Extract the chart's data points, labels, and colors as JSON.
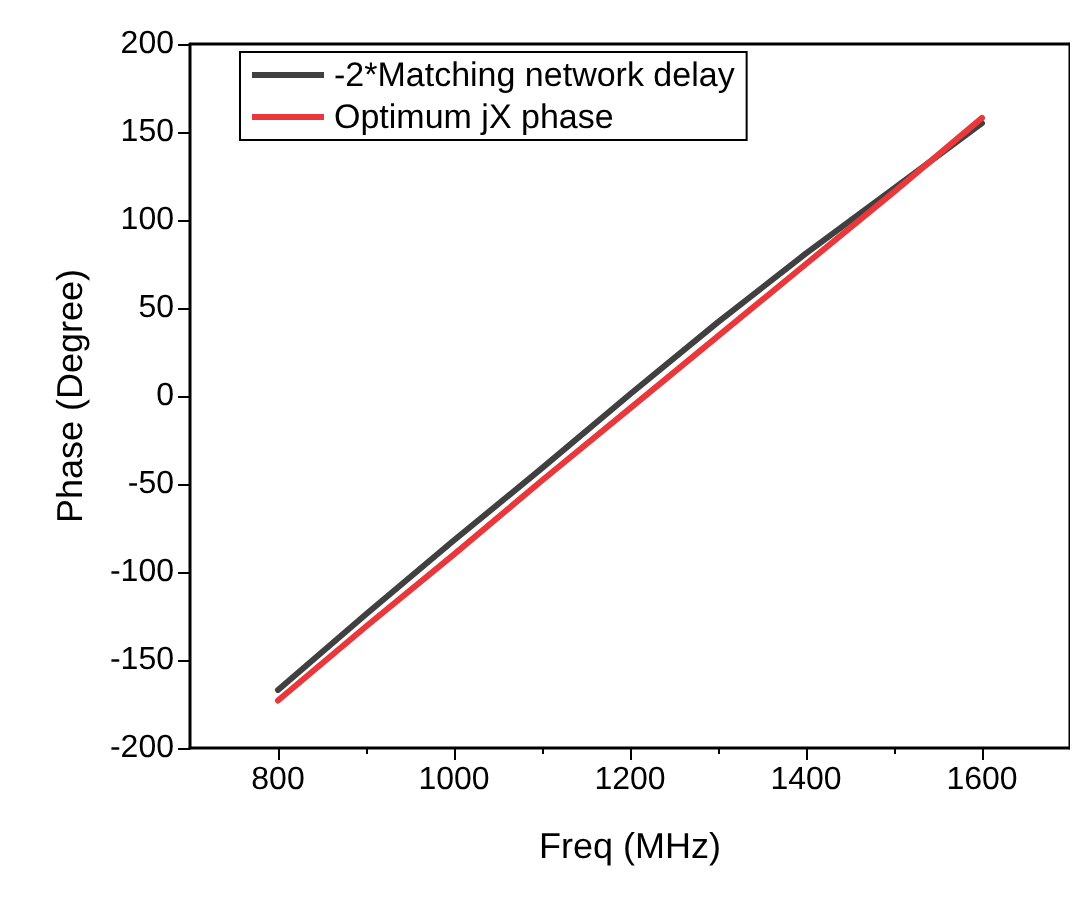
{
  "chart_data": {
    "type": "line",
    "xlabel": "Freq (MHz)",
    "ylabel": "Phase (Degree)",
    "x": [
      800,
      900,
      1000,
      1100,
      1200,
      1300,
      1400,
      1500,
      1600
    ],
    "series": [
      {
        "name": "-2*Matching network delay",
        "color": "#404040",
        "values": [
          -167,
          -124,
          -82,
          -41,
          1,
          42,
          81,
          118,
          155
        ]
      },
      {
        "name": "Optimum jX phase",
        "color": "#e8383c",
        "values": [
          -173,
          -131,
          -90,
          -48,
          -7,
          34,
          75,
          116,
          158
        ]
      }
    ],
    "xlim": [
      700,
      1700
    ],
    "xticks": [
      800,
      1000,
      1200,
      1400,
      1600
    ],
    "ylim": [
      -200,
      200
    ],
    "yticks": [
      -200,
      -150,
      -100,
      -50,
      0,
      50,
      100,
      150,
      200
    ],
    "grid": false,
    "legend": "top left",
    "marker": "none",
    "line_style": "solid"
  }
}
